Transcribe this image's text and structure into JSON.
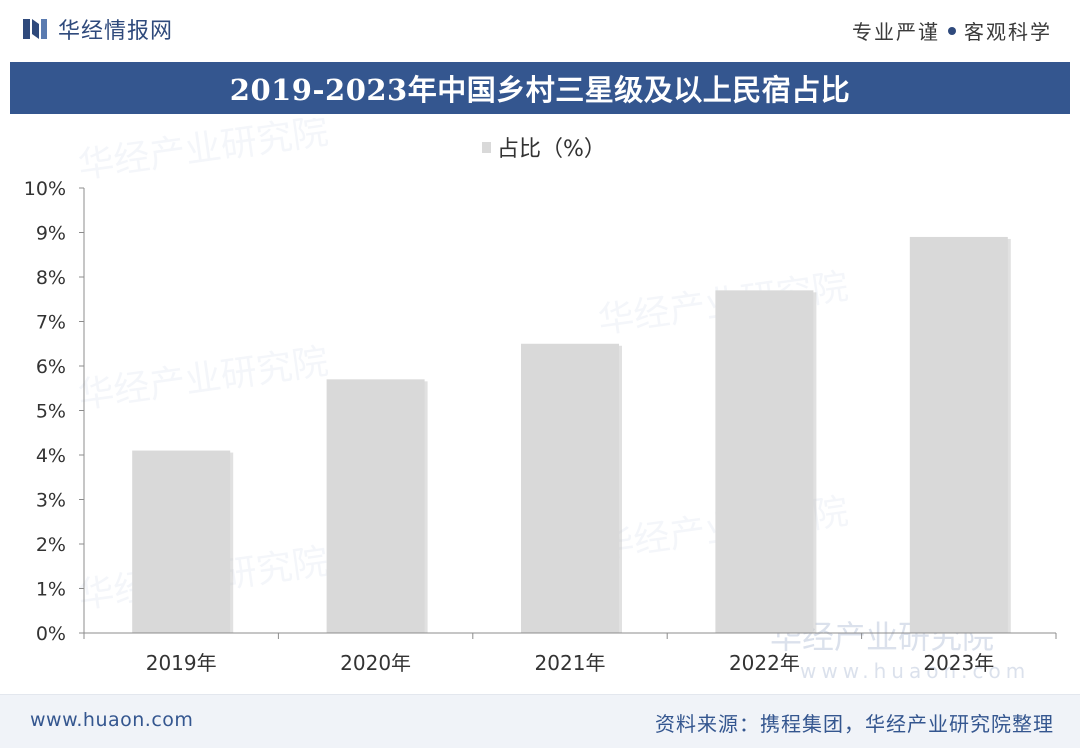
{
  "header": {
    "brand_name": "华经情报网",
    "slogan_left": "专业严谨",
    "slogan_right": "客观科学"
  },
  "colors": {
    "brand": "#2f4a7c",
    "title_bar": "#34568f",
    "bar": "#d9d9d9",
    "axis": "#8c8c8c"
  },
  "watermark": {
    "text": "华经产业研究院",
    "url": "www.huaon.com"
  },
  "footer": {
    "url": "www.huaon.com",
    "source": "资料来源：携程集团，华经产业研究院整理"
  },
  "chart_data": {
    "type": "bar",
    "title": "2019-2023年中国乡村三星级及以上民宿占比",
    "categories": [
      "2019年",
      "2020年",
      "2021年",
      "2022年",
      "2023年"
    ],
    "series": [
      {
        "name": "占比（%）",
        "values": [
          4.1,
          5.7,
          6.5,
          7.7,
          8.9
        ]
      }
    ],
    "y_ticks": [
      "0%",
      "1%",
      "2%",
      "3%",
      "4%",
      "5%",
      "6%",
      "7%",
      "8%",
      "9%",
      "10%"
    ],
    "ylim": [
      0,
      10
    ],
    "xlabel": "",
    "ylabel": "",
    "grid": false,
    "legend_position": "top-center"
  }
}
